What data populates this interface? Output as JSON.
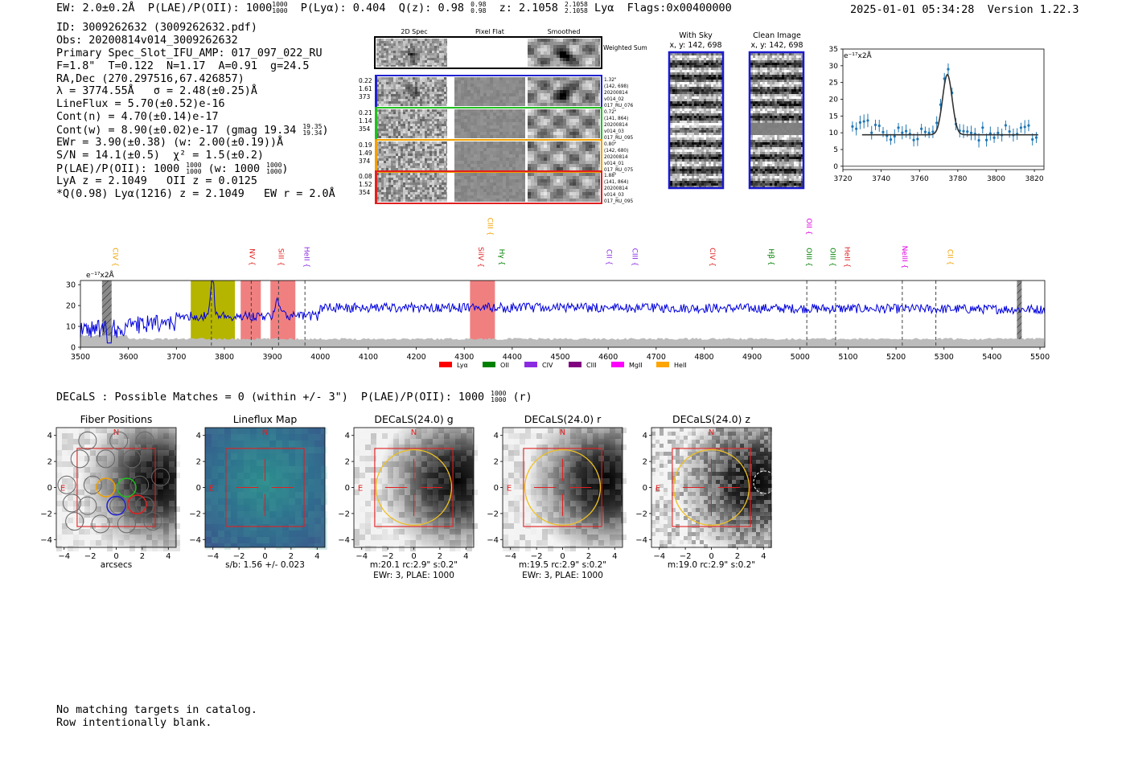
{
  "header": {
    "ew": "EW: 2.0±0.2Å",
    "plae_label": "P(LAE)/P(OII): 1000",
    "plae_hi": "1000",
    "plae_lo": "1000",
    "plya": "P(Lyα): 0.404",
    "qz": "Q(z): 0.98",
    "qz_hi": "0.98",
    "qz_lo": "0.98",
    "z": "z: 2.1058",
    "z_hi": "2.1058",
    "z_lo": "2.1058",
    "line": "Lyα",
    "flags": "Flags:0x00400000",
    "timestamp": "2025-01-01 05:34:28",
    "version": "Version 1.22.3"
  },
  "info": {
    "id": "ID: 3009262632 (3009262632.pdf)",
    "obs": "Obs: 20200814v014_3009262632",
    "primary": "Primary Spec_Slot_IFU_AMP: 017_097_022_RU",
    "fiber_params": "F=1.8\"  T=0.122  N=1.17  A=0.91  g=24.5",
    "radec": "RA,Dec (270.297516,67.426857)",
    "lambda": "λ = 3774.55Å   σ = 2.48(±0.25)Å",
    "lineflux": "LineFlux = 5.70(±0.52)e-16",
    "contn": "Cont(n) = 4.70(±0.14)e-17",
    "contw": "Cont(w) = 8.90(±0.02)e-17 (gmag 19.34",
    "gmag_hi": "19.35",
    "gmag_lo": "19.34",
    "contw_close": ")",
    "ewr": "EWr = 3.90(±0.38) (w: 2.00(±0.19))Å",
    "sn": "S/N = 14.1(±0.5)  χ² = 1.5(±0.2)",
    "plae": "P(LAE)/P(OII): 1000",
    "plae_hi": "1000",
    "plae_lo": "1000",
    "plae_w": "(w: 1000",
    "plae_w_hi": "1000",
    "plae_w_lo": "1000",
    "plae_w_close": ")",
    "lya_z": "LyA z = 2.1049   OII z = 0.0125",
    "q_line": "*Q(0.98) Lyα(1216) z = 2.1049   EW r = 2.0Å"
  },
  "cutouts": {
    "col_titles": [
      "2D Spec",
      "Pixel Flat",
      "Smoothed"
    ],
    "weighted_sum": "Weighted Sum",
    "rows": [
      {
        "left": [
          "0.22",
          "1.61",
          "373"
        ],
        "right": [
          "1.32\"",
          "(142, 698)",
          "20200814",
          "v014_02",
          "017_RU_076"
        ],
        "color": "#2020d0"
      },
      {
        "left": [
          "0.21",
          "1.14",
          "354"
        ],
        "right": [
          "0.72\"",
          "(141, 864)",
          "20200814",
          "v014_03",
          "017_RU_095"
        ],
        "color": "#20c020"
      },
      {
        "left": [
          "0.19",
          "1.49",
          "374"
        ],
        "right": [
          "0.80\"",
          "(142, 680)",
          "20200814",
          "v014_01",
          "017_RU_075"
        ],
        "color": "#f0a000"
      },
      {
        "left": [
          "0.08",
          "1.52",
          "354"
        ],
        "right": [
          "1.88\"",
          "(141, 864)",
          "20200814",
          "v014_03",
          "017_RU_095"
        ],
        "color": "#e02020"
      }
    ]
  },
  "sky_panels": {
    "with_sky": {
      "title": "With Sky",
      "coords": "x, y: 142, 698"
    },
    "clean": {
      "title": "Clean Image",
      "coords": "x, y: 142, 698"
    }
  },
  "line_fit": {
    "unit": "e⁻¹⁷x2Å",
    "xlim": [
      3720,
      3825
    ],
    "ylim": [
      -1,
      35
    ],
    "xticks": [
      3720,
      3740,
      3760,
      3780,
      3800,
      3820
    ],
    "yticks": [
      0,
      5,
      10,
      15,
      20,
      25,
      30,
      35
    ],
    "continuum": 9.4,
    "center": 3774.55,
    "sigma": 2.48,
    "amplitude": 18.0
  },
  "spectrum": {
    "unit": "e⁻¹⁷x2Å",
    "xlim": [
      3500,
      5510
    ],
    "ylim": [
      0,
      32
    ],
    "xticks": [
      3500,
      3600,
      3700,
      3800,
      3900,
      4000,
      4100,
      4200,
      4300,
      4400,
      4500,
      4600,
      4700,
      4800,
      4900,
      5000,
      5100,
      5200,
      5300,
      5400,
      5500
    ],
    "yticks": [
      0,
      10,
      20,
      30
    ],
    "line_labels": [
      {
        "name": "CIV",
        "x": 3568,
        "color": "#f0a000"
      },
      {
        "name": "NV",
        "x": 3853,
        "color": "#e02020"
      },
      {
        "name": "SiII",
        "x": 3913,
        "color": "#e02020"
      },
      {
        "name": "HeII",
        "x": 3967,
        "color": "#8a2be2"
      },
      {
        "name": "SiIV",
        "x": 4330,
        "color": "#e02020"
      },
      {
        "name": "CIII",
        "x": 4349,
        "color": "#f0a000"
      },
      {
        "name": "Hγ",
        "x": 4373,
        "color": "#008000"
      },
      {
        "name": "CII",
        "x": 4597,
        "color": "#8a2be2"
      },
      {
        "name": "CIII",
        "x": 4651,
        "color": "#8a2be2"
      },
      {
        "name": "CIV",
        "x": 4813,
        "color": "#e02020"
      },
      {
        "name": "Hβ",
        "x": 4935,
        "color": "#008000"
      },
      {
        "name": "OII",
        "x": 5014,
        "color": "#e000e0"
      },
      {
        "name": "OIII",
        "x": 5014,
        "color": "#008000"
      },
      {
        "name": "OIII",
        "x": 5063,
        "color": "#008000"
      },
      {
        "name": "HeII",
        "x": 5093,
        "color": "#e02020"
      },
      {
        "name": "NeIII",
        "x": 5213,
        "color": "#e000e0"
      },
      {
        "name": "CII",
        "x": 5308,
        "color": "#f0a000"
      }
    ],
    "legend": [
      {
        "label": "Lyα",
        "color": "#ff0000"
      },
      {
        "label": "OII",
        "color": "#008000"
      },
      {
        "label": "CIV",
        "color": "#8a2be2"
      },
      {
        "label": "CIII",
        "color": "#800080"
      },
      {
        "label": "MgII",
        "color": "#ff00ff"
      },
      {
        "label": "HeII",
        "color": "#ffa500"
      }
    ],
    "bands": [
      {
        "x0": 3545,
        "x1": 3565,
        "color": "#808080",
        "hatched": true
      },
      {
        "x0": 3730,
        "x1": 3822,
        "color": "#b5b500",
        "hatched": false
      },
      {
        "x0": 3834,
        "x1": 3876,
        "color": "#f08080",
        "hatched": false
      },
      {
        "x0": 3896,
        "x1": 3948,
        "color": "#f08080",
        "hatched": false
      },
      {
        "x0": 4312,
        "x1": 4364,
        "color": "#f08080",
        "hatched": false
      },
      {
        "x0": 5452,
        "x1": 5462,
        "color": "#808080",
        "hatched": true
      }
    ],
    "dashed_lines": [
      3773,
      3856,
      3913,
      3968,
      5014,
      5074,
      5213,
      5283
    ]
  },
  "decals": {
    "summary": "DECaLS : Possible Matches = 0 (within +/- 3\")  P(LAE)/P(OII): 1000",
    "summary_hi": "1000",
    "summary_lo": "1000",
    "summary_tail": "(r)",
    "panels": [
      {
        "title": "Fiber Positions",
        "caption1": "arcsecs",
        "caption2": ""
      },
      {
        "title": "Lineflux Map",
        "caption1": "s/b: 1.56 +/- 0.023",
        "caption2": ""
      },
      {
        "title": "DECaLS(24.0) g",
        "caption1": "m:20.1 rc:2.9\"  s:0.2\"",
        "caption2": "EWr: 3, PLAE: 1000"
      },
      {
        "title": "DECaLS(24.0) r",
        "caption1": "m:19.5 rc:2.9\"  s:0.2\"",
        "caption2": "EWr: 3, PLAE: 1000"
      },
      {
        "title": "DECaLS(24.0) z",
        "caption1": "m:19.0 rc:2.9\"  s:0.2\"",
        "caption2": ""
      }
    ],
    "ticks": [
      "−4",
      "−2",
      "0",
      "2",
      "4"
    ],
    "north": "N",
    "east": "E"
  },
  "footer": {
    "line1": "No matching targets in catalog.",
    "line2": "Row intentionally blank."
  },
  "colors": {
    "spectrum": "#0000dd",
    "fit_points": "#1f77b4",
    "box_red": "#e02020",
    "circle_yellow": "#f0c020"
  }
}
